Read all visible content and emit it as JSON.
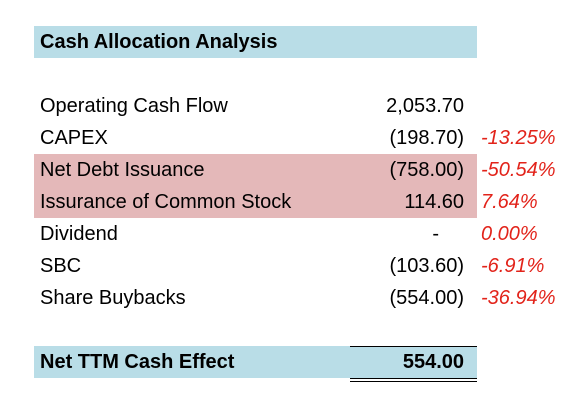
{
  "title": "Cash Allocation Analysis",
  "rows": [
    {
      "label": "Operating Cash Flow",
      "value": "2,053.70",
      "pct": "",
      "highlight": false
    },
    {
      "label": "CAPEX",
      "value": "(198.70)",
      "pct": "-13.25%",
      "highlight": false
    },
    {
      "label": "Net Debt Issuance",
      "value": "(758.00)",
      "pct": "-50.54%",
      "highlight": true
    },
    {
      "label": "Issurance of Common Stock",
      "value": "114.60",
      "pct": "7.64%",
      "highlight": true
    },
    {
      "label": "Dividend",
      "value": "-",
      "pct": "0.00%",
      "highlight": false
    },
    {
      "label": "SBC",
      "value": "(103.60)",
      "pct": "-6.91%",
      "highlight": false
    },
    {
      "label": "Share Buybacks",
      "value": "(554.00)",
      "pct": "-36.94%",
      "highlight": false
    }
  ],
  "total": {
    "label": "Net TTM Cash Effect",
    "value": "554.00"
  },
  "colors": {
    "header_fill": "#b9dde7",
    "highlight_fill": "#e4b8b9",
    "percent_text": "#e2231a"
  }
}
